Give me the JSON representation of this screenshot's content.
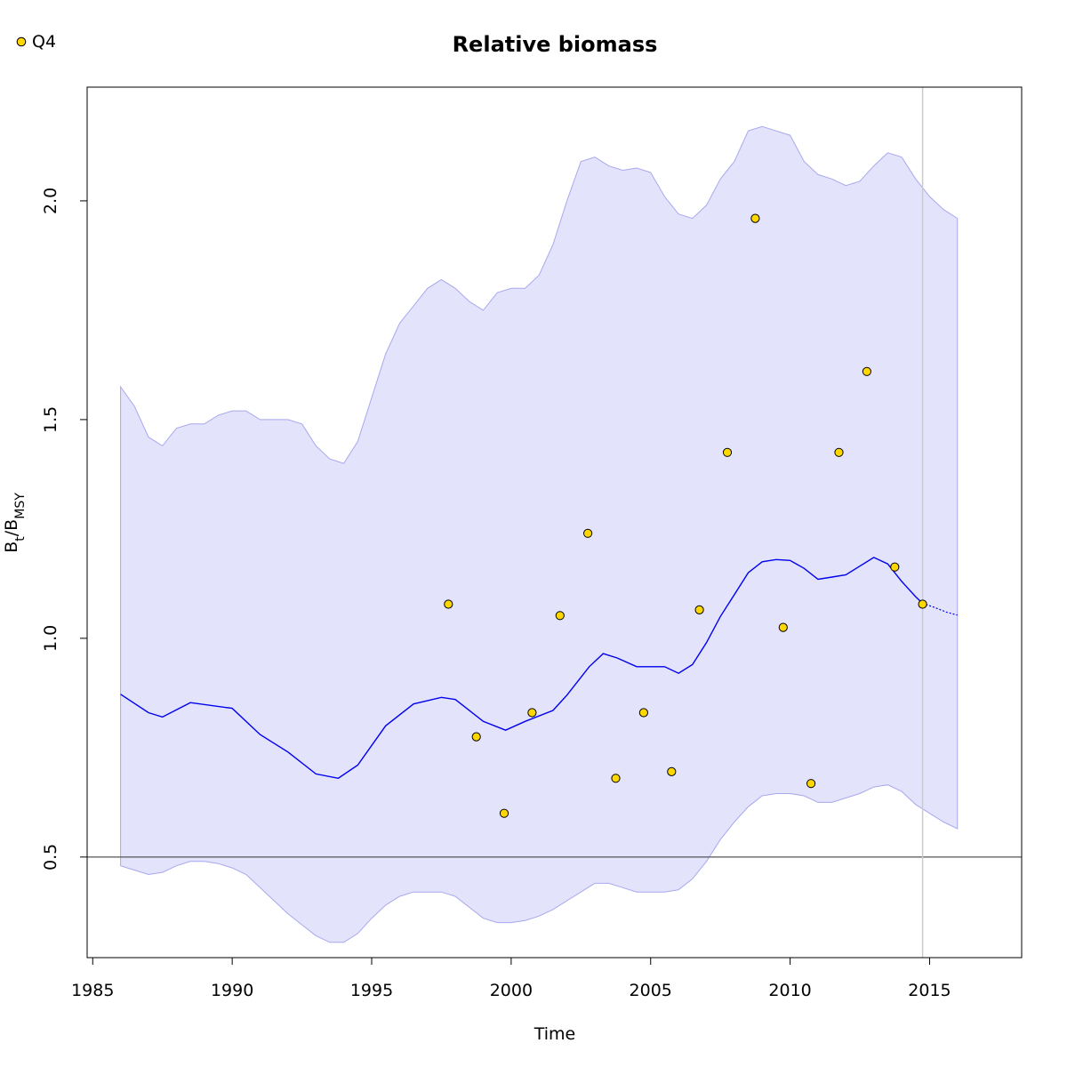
{
  "chart_data": {
    "type": "line",
    "title": "Relative biomass",
    "xlabel": "Time",
    "ylabel": {
      "main": "B",
      "sub1": "t",
      "slash": "/",
      "main2": "B",
      "sub2": "MSY"
    },
    "xlim": [
      1984.8,
      2018.3
    ],
    "ylim": [
      0.27,
      2.26
    ],
    "x_ticks": [
      1985,
      1990,
      1995,
      2000,
      2005,
      2010,
      2015
    ],
    "y_ticks": [
      0.5,
      1.0,
      1.5,
      2.0
    ],
    "x_tick_labels": [
      "1985",
      "1990",
      "1995",
      "2000",
      "2005",
      "2010",
      "2015"
    ],
    "y_tick_labels": [
      "0.5",
      "1.0",
      "1.5",
      "2.0"
    ],
    "reference_line_y": 0.5,
    "vertical_line_x": 2014.75,
    "colors": {
      "band": "#e3e3fb",
      "band_edge": "#a8a8ee",
      "line": "#0000ee",
      "points_fill": "#ffd700",
      "points_stroke": "#000000",
      "ref_line": "#555555",
      "vline": "#cccccc"
    },
    "legend": {
      "label": "Q4",
      "placement": "top-left"
    },
    "estimate": {
      "name": "B/BMSY estimate",
      "x": [
        1986.0,
        1987.0,
        1987.5,
        1988.5,
        1990.0,
        1991.0,
        1992.0,
        1993.0,
        1993.8,
        1994.5,
        1995.5,
        1996.5,
        1997.5,
        1998.0,
        1999.0,
        1999.8,
        2000.5,
        2001.5,
        2002.0,
        2002.8,
        2003.3,
        2003.8,
        2004.5,
        2005.0,
        2005.5,
        2006.0,
        2006.5,
        2007.0,
        2007.5,
        2008.0,
        2008.5,
        2009.0,
        2009.5,
        2010.0,
        2010.5,
        2011.0,
        2011.5,
        2012.0,
        2012.5,
        2013.0,
        2013.5,
        2014.0,
        2014.5,
        2014.75
      ],
      "y": [
        0.872,
        0.83,
        0.82,
        0.853,
        0.84,
        0.78,
        0.74,
        0.69,
        0.68,
        0.71,
        0.8,
        0.85,
        0.865,
        0.86,
        0.81,
        0.79,
        0.81,
        0.835,
        0.87,
        0.935,
        0.965,
        0.955,
        0.935,
        0.935,
        0.935,
        0.92,
        0.94,
        0.99,
        1.05,
        1.1,
        1.15,
        1.175,
        1.18,
        1.178,
        1.16,
        1.135,
        1.14,
        1.145,
        1.165,
        1.185,
        1.17,
        1.13,
        1.095,
        1.08
      ]
    },
    "projection": {
      "name": "B/BMSY projection",
      "x": [
        2014.75,
        2015.2,
        2015.6,
        2016.0
      ],
      "y": [
        1.08,
        1.07,
        1.06,
        1.053
      ]
    },
    "band_upper": {
      "name": "upper confidence bound",
      "x": [
        1986.0,
        1986.5,
        1987.0,
        1987.5,
        1988.0,
        1988.5,
        1989.0,
        1989.5,
        1990.0,
        1990.5,
        1991.0,
        1991.5,
        1992.0,
        1992.5,
        1993.0,
        1993.5,
        1994.0,
        1994.5,
        1995.0,
        1995.5,
        1996.0,
        1996.5,
        1997.0,
        1997.5,
        1998.0,
        1998.5,
        1999.0,
        1999.5,
        2000.0,
        2000.5,
        2001.0,
        2001.5,
        2002.0,
        2002.5,
        2003.0,
        2003.5,
        2004.0,
        2004.5,
        2005.0,
        2005.5,
        2006.0,
        2006.5,
        2007.0,
        2007.5,
        2008.0,
        2008.5,
        2009.0,
        2009.5,
        2010.0,
        2010.5,
        2011.0,
        2011.5,
        2012.0,
        2012.5,
        2013.0,
        2013.5,
        2014.0,
        2014.5,
        2015.0,
        2015.5,
        2016.0
      ],
      "y": [
        1.575,
        1.53,
        1.46,
        1.44,
        1.48,
        1.49,
        1.49,
        1.51,
        1.52,
        1.52,
        1.5,
        1.5,
        1.5,
        1.49,
        1.44,
        1.41,
        1.4,
        1.45,
        1.55,
        1.65,
        1.72,
        1.76,
        1.8,
        1.82,
        1.8,
        1.77,
        1.75,
        1.79,
        1.8,
        1.8,
        1.83,
        1.9,
        2.0,
        2.09,
        2.1,
        2.08,
        2.07,
        2.075,
        2.065,
        2.01,
        1.97,
        1.96,
        1.99,
        2.05,
        2.09,
        2.16,
        2.17,
        2.16,
        2.15,
        2.09,
        2.06,
        2.05,
        2.035,
        2.045,
        2.08,
        2.11,
        2.1,
        2.05,
        2.01,
        1.98,
        1.96
      ]
    },
    "band_lower": {
      "name": "lower confidence bound",
      "x": [
        1986.0,
        1986.5,
        1987.0,
        1987.5,
        1988.0,
        1988.5,
        1989.0,
        1989.5,
        1990.0,
        1990.5,
        1991.0,
        1991.5,
        1992.0,
        1992.5,
        1993.0,
        1993.5,
        1994.0,
        1994.5,
        1995.0,
        1995.5,
        1996.0,
        1996.5,
        1997.0,
        1997.5,
        1998.0,
        1998.5,
        1999.0,
        1999.5,
        2000.0,
        2000.5,
        2001.0,
        2001.5,
        2002.0,
        2002.5,
        2003.0,
        2003.5,
        2004.0,
        2004.5,
        2005.0,
        2005.5,
        2006.0,
        2006.5,
        2007.0,
        2007.5,
        2008.0,
        2008.5,
        2009.0,
        2009.5,
        2010.0,
        2010.5,
        2011.0,
        2011.5,
        2012.0,
        2012.5,
        2013.0,
        2013.5,
        2014.0,
        2014.5,
        2015.0,
        2015.5,
        2016.0
      ],
      "y": [
        0.48,
        0.47,
        0.46,
        0.465,
        0.48,
        0.49,
        0.49,
        0.485,
        0.475,
        0.46,
        0.43,
        0.4,
        0.37,
        0.345,
        0.32,
        0.305,
        0.305,
        0.325,
        0.36,
        0.39,
        0.41,
        0.42,
        0.42,
        0.42,
        0.41,
        0.385,
        0.36,
        0.35,
        0.35,
        0.355,
        0.365,
        0.38,
        0.4,
        0.42,
        0.44,
        0.44,
        0.43,
        0.42,
        0.42,
        0.42,
        0.425,
        0.45,
        0.49,
        0.54,
        0.58,
        0.615,
        0.64,
        0.645,
        0.645,
        0.64,
        0.625,
        0.625,
        0.635,
        0.645,
        0.66,
        0.665,
        0.65,
        0.62,
        0.6,
        0.58,
        0.565
      ]
    },
    "points": {
      "name": "Q4",
      "x": [
        1997.75,
        1998.75,
        1999.75,
        2000.75,
        2001.75,
        2002.75,
        2003.75,
        2004.75,
        2005.75,
        2006.75,
        2007.75,
        2008.75,
        2009.75,
        2010.75,
        2011.75,
        2012.75,
        2013.75,
        2014.75
      ],
      "y": [
        1.078,
        0.775,
        0.6,
        0.83,
        1.052,
        1.24,
        0.68,
        0.83,
        0.695,
        1.065,
        1.425,
        1.96,
        1.025,
        0.668,
        1.425,
        1.61,
        1.163,
        1.078
      ]
    }
  }
}
